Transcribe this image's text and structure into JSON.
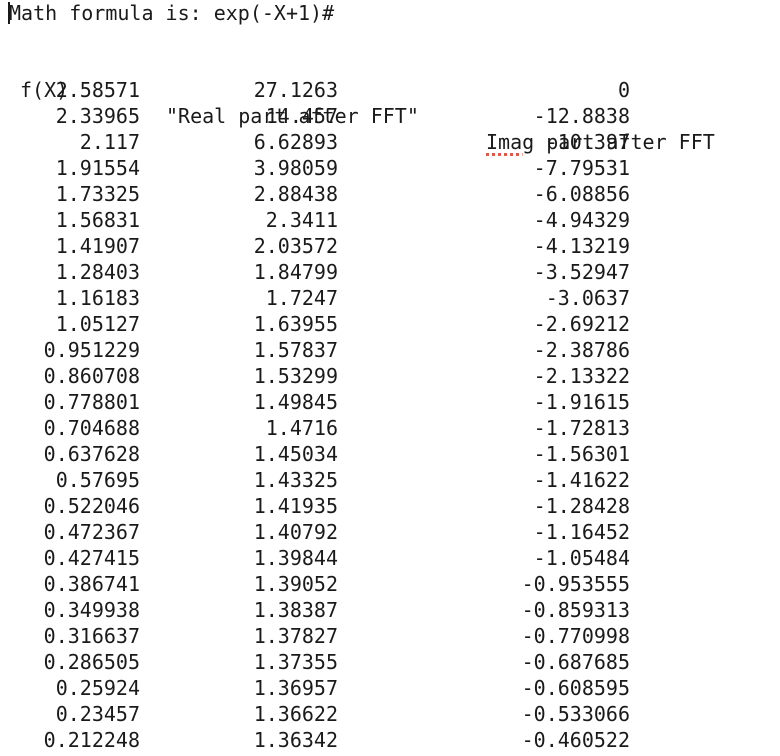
{
  "terminal": {
    "prompt_line": "Math formula is: exp(-X+1)#",
    "headers": {
      "fx": "f(X)",
      "real": "\"Real part after FFT\"",
      "imag_first": "Imag",
      "imag_rest": " part after FFT"
    },
    "rows": [
      {
        "fx": "2.58571",
        "real": "27.1263",
        "imag": "0"
      },
      {
        "fx": "2.33965",
        "real": "14.457",
        "imag": "-12.8838"
      },
      {
        "fx": "2.117",
        "real": "6.62893",
        "imag": "-10.397"
      },
      {
        "fx": "1.91554",
        "real": "3.98059",
        "imag": "-7.79531"
      },
      {
        "fx": "1.73325",
        "real": "2.88438",
        "imag": "-6.08856"
      },
      {
        "fx": "1.56831",
        "real": "2.3411",
        "imag": "-4.94329"
      },
      {
        "fx": "1.41907",
        "real": "2.03572",
        "imag": "-4.13219"
      },
      {
        "fx": "1.28403",
        "real": "1.84799",
        "imag": "-3.52947"
      },
      {
        "fx": "1.16183",
        "real": "1.7247",
        "imag": "-3.0637"
      },
      {
        "fx": "1.05127",
        "real": "1.63955",
        "imag": "-2.69212"
      },
      {
        "fx": "0.951229",
        "real": "1.57837",
        "imag": "-2.38786"
      },
      {
        "fx": "0.860708",
        "real": "1.53299",
        "imag": "-2.13322"
      },
      {
        "fx": "0.778801",
        "real": "1.49845",
        "imag": "-1.91615"
      },
      {
        "fx": "0.704688",
        "real": "1.4716",
        "imag": "-1.72813"
      },
      {
        "fx": "0.637628",
        "real": "1.45034",
        "imag": "-1.56301"
      },
      {
        "fx": "0.57695",
        "real": "1.43325",
        "imag": "-1.41622"
      },
      {
        "fx": "0.522046",
        "real": "1.41935",
        "imag": "-1.28428"
      },
      {
        "fx": "0.472367",
        "real": "1.40792",
        "imag": "-1.16452"
      },
      {
        "fx": "0.427415",
        "real": "1.39844",
        "imag": "-1.05484"
      },
      {
        "fx": "0.386741",
        "real": "1.39052",
        "imag": "-0.953555"
      },
      {
        "fx": "0.349938",
        "real": "1.38387",
        "imag": "-0.859313"
      },
      {
        "fx": "0.316637",
        "real": "1.37827",
        "imag": "-0.770998"
      },
      {
        "fx": "0.286505",
        "real": "1.37355",
        "imag": "-0.687685"
      },
      {
        "fx": "0.25924",
        "real": "1.36957",
        "imag": "-0.608595"
      },
      {
        "fx": "0.23457",
        "real": "1.36622",
        "imag": "-0.533066"
      },
      {
        "fx": "0.212248",
        "real": "1.36342",
        "imag": "-0.460522"
      }
    ]
  }
}
